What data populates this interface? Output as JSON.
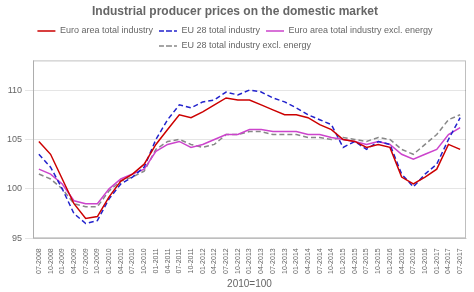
{
  "chart_data": {
    "type": "line",
    "title": "Industrial producer prices on the domestic market",
    "x_label": "2010=100",
    "categories": [
      "07-2008",
      "10-2008",
      "01-2009",
      "04-2009",
      "07-2009",
      "10-2009",
      "01-2010",
      "04-2010",
      "07-2010",
      "10-2010",
      "01-2011",
      "04-2011",
      "07-2011",
      "10-2011",
      "01-2012",
      "04-2012",
      "07-2012",
      "10-2012",
      "01-2013",
      "04-2013",
      "07-2013",
      "10-2013",
      "01-2014",
      "04-2014",
      "07-2014",
      "10-2014",
      "01-2015",
      "04-2015",
      "07-2015",
      "10-2015",
      "01-2016",
      "04-2016",
      "07-2016",
      "10-2016",
      "01-2017",
      "04-2017",
      "07-2017"
    ],
    "series": [
      {
        "name": "Euro area total industry",
        "color": "#cc0000",
        "line_style": "solid",
        "values": [
          104.8,
          103.5,
          101.0,
          98.5,
          97.0,
          97.2,
          99.2,
          100.8,
          101.5,
          102.5,
          104.5,
          106.0,
          107.5,
          107.2,
          107.8,
          108.5,
          109.2,
          109.0,
          109.0,
          108.5,
          108.0,
          107.5,
          107.5,
          107.2,
          106.5,
          106.0,
          105.0,
          104.8,
          104.2,
          104.5,
          104.2,
          101.2,
          100.5,
          101.2,
          102.0,
          104.5,
          104.0
        ]
      },
      {
        "name": "EU 28 total industry",
        "color": "#2222cc",
        "line_style": "dashed",
        "values": [
          103.5,
          102.2,
          100.0,
          97.5,
          96.5,
          96.8,
          99.0,
          100.5,
          101.2,
          102.2,
          105.0,
          107.0,
          108.5,
          108.2,
          108.8,
          109.0,
          109.8,
          109.5,
          110.0,
          109.8,
          109.2,
          108.8,
          108.2,
          107.5,
          107.0,
          106.5,
          104.2,
          104.8,
          104.0,
          104.8,
          104.5,
          101.5,
          100.2,
          101.5,
          102.5,
          105.0,
          107.2
        ]
      },
      {
        "name": "Euro area total industry excl. energy",
        "color": "#cc44cc",
        "line_style": "solid",
        "values": [
          102.0,
          101.5,
          100.5,
          98.8,
          98.5,
          98.5,
          100.0,
          101.0,
          101.5,
          102.0,
          103.8,
          104.5,
          104.8,
          104.2,
          104.5,
          105.0,
          105.5,
          105.5,
          106.0,
          106.0,
          105.8,
          105.8,
          105.8,
          105.5,
          105.5,
          105.2,
          105.0,
          104.8,
          104.5,
          104.8,
          104.5,
          103.5,
          103.0,
          103.5,
          104.0,
          105.5,
          106.2
        ]
      },
      {
        "name": "EU 28 total industry excl. energy",
        "color": "#888888",
        "line_style": "dashed",
        "values": [
          101.5,
          101.0,
          100.0,
          98.5,
          98.2,
          98.2,
          99.8,
          100.8,
          101.2,
          101.8,
          104.0,
          104.8,
          105.0,
          104.5,
          104.2,
          104.5,
          105.5,
          105.5,
          105.8,
          105.8,
          105.5,
          105.5,
          105.5,
          105.2,
          105.2,
          105.0,
          105.2,
          105.0,
          104.8,
          105.2,
          105.0,
          104.0,
          103.5,
          104.5,
          105.5,
          107.0,
          107.5
        ]
      }
    ],
    "ylim": [
      95,
      113
    ],
    "yticks": [
      95,
      100,
      105,
      110
    ],
    "grid": "y",
    "legend": "top"
  }
}
